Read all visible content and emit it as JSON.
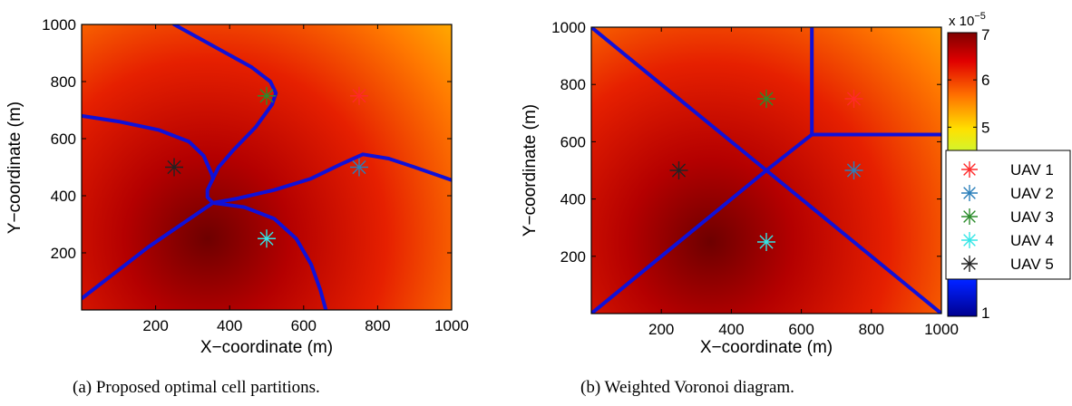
{
  "chart_data": [
    {
      "type": "heatmap",
      "subplot": "a",
      "caption": "(a) Proposed optimal cell partitions.",
      "xlabel": "X−coordinate (m)",
      "ylabel": "Y−coordinate (m)",
      "xlim": [
        0,
        1000
      ],
      "ylim": [
        0,
        1000
      ],
      "xticks": [
        "200",
        "400",
        "600",
        "800",
        "1000"
      ],
      "yticks": [
        "200",
        "400",
        "600",
        "800",
        "1000"
      ],
      "heat_peak": [
        340,
        250
      ],
      "boundaries": [
        [
          [
            250,
            1000
          ],
          [
            320,
            950
          ],
          [
            390,
            900
          ],
          [
            460,
            850
          ],
          [
            510,
            800
          ],
          [
            525,
            760
          ],
          [
            515,
            720
          ],
          [
            470,
            640
          ],
          [
            410,
            560
          ],
          [
            370,
            500
          ],
          [
            355,
            460
          ]
        ],
        [
          [
            0,
            680
          ],
          [
            100,
            660
          ],
          [
            210,
            630
          ],
          [
            290,
            590
          ],
          [
            330,
            540
          ],
          [
            352,
            475
          ],
          [
            355,
            460
          ]
        ],
        [
          [
            355,
            460
          ],
          [
            340,
            420
          ],
          [
            340,
            395
          ],
          [
            355,
            375
          ]
        ],
        [
          [
            355,
            375
          ],
          [
            420,
            390
          ],
          [
            520,
            420
          ],
          [
            620,
            460
          ],
          [
            700,
            510
          ],
          [
            760,
            545
          ],
          [
            830,
            530
          ],
          [
            900,
            500
          ],
          [
            1000,
            455
          ]
        ],
        [
          [
            355,
            375
          ],
          [
            270,
            300
          ],
          [
            180,
            220
          ],
          [
            90,
            130
          ],
          [
            0,
            40
          ]
        ],
        [
          [
            355,
            375
          ],
          [
            440,
            360
          ],
          [
            520,
            320
          ],
          [
            580,
            250
          ],
          [
            620,
            160
          ],
          [
            645,
            70
          ],
          [
            660,
            0
          ]
        ]
      ],
      "uavs": [
        {
          "name": "UAV 1",
          "x": 750,
          "y": 750,
          "color": "#ff2a2a"
        },
        {
          "name": "UAV 2",
          "x": 750,
          "y": 500,
          "color": "#2a7fba"
        },
        {
          "name": "UAV 3",
          "x": 500,
          "y": 750,
          "color": "#2a8c2a"
        },
        {
          "name": "UAV 4",
          "x": 500,
          "y": 250,
          "color": "#33e6e6"
        },
        {
          "name": "UAV 5",
          "x": 250,
          "y": 500,
          "color": "#222222"
        }
      ]
    },
    {
      "type": "heatmap",
      "subplot": "b",
      "caption": "(b) Weighted Voronoi diagram.",
      "xlabel": "X−coordinate (m)",
      "ylabel": "Y−coordinate (m)",
      "xlim": [
        0,
        1000
      ],
      "ylim": [
        0,
        1000
      ],
      "xticks": [
        "200",
        "400",
        "600",
        "800",
        "1000"
      ],
      "yticks": [
        "200",
        "400",
        "600",
        "800",
        "1000"
      ],
      "heat_peak": [
        340,
        250
      ],
      "boundaries": [
        [
          [
            0,
            1000
          ],
          [
            500,
            500
          ],
          [
            1000,
            0
          ]
        ],
        [
          [
            0,
            0
          ],
          [
            500,
            500
          ],
          [
            630,
            625
          ]
        ],
        [
          [
            630,
            1000
          ],
          [
            630,
            625
          ],
          [
            1000,
            625
          ]
        ]
      ],
      "uavs": [
        {
          "name": "UAV 1",
          "x": 750,
          "y": 750,
          "color": "#ff2a2a"
        },
        {
          "name": "UAV 2",
          "x": 750,
          "y": 500,
          "color": "#2a7fba"
        },
        {
          "name": "UAV 3",
          "x": 500,
          "y": 750,
          "color": "#2a8c2a"
        },
        {
          "name": "UAV 4",
          "x": 500,
          "y": 250,
          "color": "#33e6e6"
        },
        {
          "name": "UAV 5",
          "x": 250,
          "y": 500,
          "color": "#222222"
        }
      ],
      "legend": {
        "placement": "right",
        "entries": [
          "UAV 1",
          "UAV 2",
          "UAV 3",
          "UAV 4",
          "UAV 5"
        ]
      },
      "colorbar": {
        "range": [
          1,
          7
        ],
        "ticks": [
          "1",
          "5",
          "6",
          "7"
        ],
        "multiplier_base": "x 10",
        "multiplier_exp": "−5"
      }
    }
  ]
}
